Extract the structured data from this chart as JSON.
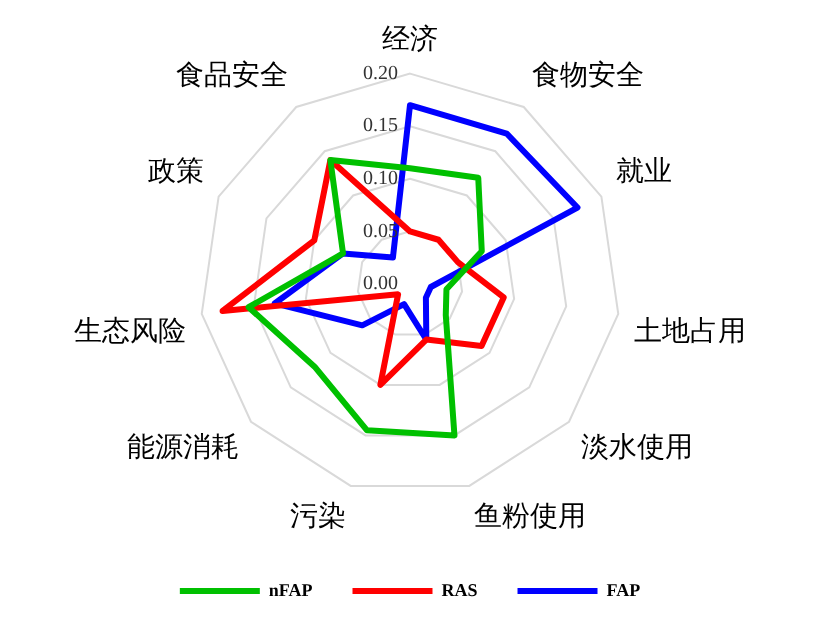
{
  "chart_data": {
    "type": "radar",
    "categories": [
      "经济",
      "食物安全",
      "就业",
      "土地占用",
      "淡水使用",
      "鱼粉使用",
      "污染",
      "能源消耗",
      "生态风险",
      "政策",
      "食品安全"
    ],
    "series": [
      {
        "name": "nFAP",
        "color": "#00c000",
        "values": [
          0.11,
          0.12,
          0.075,
          0.035,
          0.045,
          0.15,
          0.145,
          0.12,
          0.155,
          0.07,
          0.14
        ]
      },
      {
        "name": "RAS",
        "color": "#ff0000",
        "values": [
          0.05,
          0.05,
          0.05,
          0.09,
          0.09,
          0.055,
          0.1,
          0.015,
          0.18,
          0.1,
          0.14
        ]
      },
      {
        "name": "FAP",
        "color": "#0000ff",
        "values": [
          0.17,
          0.17,
          0.175,
          0.02,
          0.02,
          0.055,
          0.02,
          0.06,
          0.13,
          0.07,
          0.03
        ]
      }
    ],
    "ylim": [
      0,
      0.2
    ],
    "yticks": [
      {
        "value": 0,
        "label": "0.00"
      },
      {
        "value": 0.05,
        "label": "0.05"
      },
      {
        "value": 0.1,
        "label": "0.10"
      },
      {
        "value": 0.15,
        "label": "0.15"
      },
      {
        "value": 0.2,
        "label": "0.20"
      }
    ],
    "grid": true,
    "legend": "bottom",
    "marker": "none",
    "line_style": "solid"
  }
}
